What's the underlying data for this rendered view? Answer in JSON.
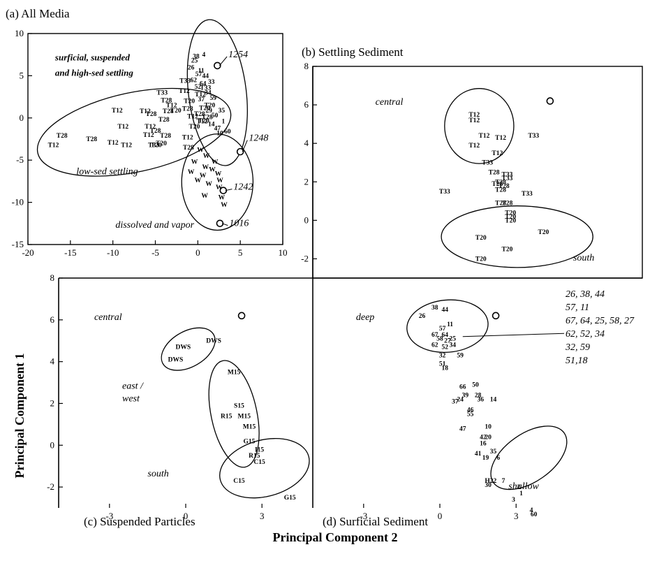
{
  "figure": {
    "xlabel": "Principal Component 2",
    "ylabel": "Principal Component 1"
  },
  "side_list": [
    "26, 38, 44",
    "57, 11",
    "67, 64, 25, 58, 27",
    "62, 52, 34",
    "32, 59",
    "51,18"
  ],
  "chart_data": [
    {
      "id": "a",
      "type": "scatter",
      "title": "(a) All Media",
      "xlim": [
        -20,
        10
      ],
      "ylim": [
        -15,
        10
      ],
      "xticks": [
        -20,
        -15,
        -10,
        -5,
        0,
        5,
        10
      ],
      "yticks": [
        -15,
        -10,
        -5,
        0,
        5,
        10
      ],
      "annotations": [
        {
          "text": "surficial, suspended",
          "x": -16.8,
          "y": 6.8,
          "style": "bold"
        },
        {
          "text": "and high-sed settling",
          "x": -16.8,
          "y": 5.0,
          "style": "bold"
        },
        {
          "text": "low-sed settling",
          "x": -14.3,
          "y": -6.7,
          "style": "italic"
        },
        {
          "text": "dissolved and vapor",
          "x": -9.7,
          "y": -13.0,
          "style": "italic"
        }
      ],
      "callouts": [
        {
          "text": "1254",
          "x": 2.3,
          "y": 6.2,
          "tx": 3.6,
          "ty": 7.6
        },
        {
          "text": "1248",
          "x": 5.0,
          "y": -4.0,
          "tx": 6.0,
          "ty": -2.3
        },
        {
          "text": "1242",
          "x": 3.0,
          "y": -8.6,
          "tx": 4.2,
          "ty": -8.1
        },
        {
          "text": "1016",
          "x": 2.6,
          "y": -12.5,
          "tx": 3.7,
          "ty": -12.4
        }
      ],
      "ellipses": [
        {
          "cx": -7.5,
          "cy": -1.7,
          "rx": 11.6,
          "ry": 4.7,
          "rot": -12
        },
        {
          "cx": 2.3,
          "cy": 3.0,
          "rx": 3.4,
          "ry": 8.7,
          "rot": -7
        },
        {
          "cx": 2.3,
          "cy": -7.6,
          "rx": 4.2,
          "ry": 5.7,
          "rot": 0
        }
      ],
      "points": [
        {
          "l": "T28",
          "x": -16.0,
          "y": -2.1
        },
        {
          "l": "T12",
          "x": -17.0,
          "y": -3.2
        },
        {
          "l": "T28",
          "x": -12.5,
          "y": -2.5
        },
        {
          "l": "T12",
          "x": -10.0,
          "y": -2.9
        },
        {
          "l": "T12",
          "x": -8.8,
          "y": -1.0
        },
        {
          "l": "T12",
          "x": -9.5,
          "y": 0.9
        },
        {
          "l": "T12",
          "x": -8.4,
          "y": -3.2
        },
        {
          "l": "T12",
          "x": -6.2,
          "y": 0.8
        },
        {
          "l": "T28",
          "x": -5.5,
          "y": 0.5
        },
        {
          "l": "T12",
          "x": -5.6,
          "y": -1.0
        },
        {
          "l": "T28",
          "x": -5.0,
          "y": -1.5
        },
        {
          "l": "T20",
          "x": -4.3,
          "y": -3.0
        },
        {
          "l": "T12",
          "x": -5.8,
          "y": -2.0
        },
        {
          "l": "T33",
          "x": -5.2,
          "y": -3.2
        },
        {
          "l": "T20",
          "x": -4.9,
          "y": -3.2
        },
        {
          "l": "T28",
          "x": -3.8,
          "y": -2.1
        },
        {
          "l": "T28",
          "x": -4.0,
          "y": -0.2
        },
        {
          "l": "T28",
          "x": -3.5,
          "y": 0.8
        },
        {
          "l": "T20",
          "x": -2.6,
          "y": 0.9
        },
        {
          "l": "T12",
          "x": -1.2,
          "y": -2.3
        },
        {
          "l": "T28",
          "x": -1.1,
          "y": -3.5
        },
        {
          "l": "T33",
          "x": -4.2,
          "y": 3.0
        },
        {
          "l": "T12",
          "x": -3.1,
          "y": 1.5
        },
        {
          "l": "T28",
          "x": -3.7,
          "y": 2.1
        },
        {
          "l": "T33",
          "x": -1.5,
          "y": 4.4
        },
        {
          "l": "T20",
          "x": -1.0,
          "y": 2.0
        },
        {
          "l": "T12",
          "x": -1.6,
          "y": 3.2
        },
        {
          "l": "T28",
          "x": -1.2,
          "y": 1.1
        },
        {
          "l": "T20",
          "x": 0.8,
          "y": 1.2
        },
        {
          "l": "T12",
          "x": -0.6,
          "y": 0.2
        },
        {
          "l": "T20",
          "x": -0.4,
          "y": -1.0
        },
        {
          "l": "T20",
          "x": 0.7,
          "y": -0.3
        },
        {
          "l": "T12",
          "x": 0.3,
          "y": 2.8
        },
        {
          "l": "T33",
          "x": 0.9,
          "y": 3.6
        },
        {
          "l": "T28",
          "x": 0.2,
          "y": 0.5
        },
        {
          "l": "T20",
          "x": 1.4,
          "y": 1.5
        },
        {
          "l": "T12",
          "x": 0.5,
          "y": -0.4
        },
        {
          "l": "T28",
          "x": 1.1,
          "y": 0.1
        },
        {
          "l": "25",
          "x": -0.4,
          "y": 6.8
        },
        {
          "l": "38",
          "x": -0.2,
          "y": 7.3
        },
        {
          "l": "4",
          "x": 0.7,
          "y": 7.5
        },
        {
          "l": "26",
          "x": -0.8,
          "y": 6.0
        },
        {
          "l": "11",
          "x": 0.4,
          "y": 5.6
        },
        {
          "l": "57",
          "x": 0.1,
          "y": 5.2
        },
        {
          "l": "44",
          "x": 0.9,
          "y": 5.0
        },
        {
          "l": "62",
          "x": -0.5,
          "y": 4.5
        },
        {
          "l": "64",
          "x": 0.6,
          "y": 4.1
        },
        {
          "l": "33",
          "x": 1.6,
          "y": 4.3
        },
        {
          "l": "52",
          "x": 0.0,
          "y": 3.7
        },
        {
          "l": "34",
          "x": 1.2,
          "y": 3.0
        },
        {
          "l": "59",
          "x": 1.8,
          "y": 2.4
        },
        {
          "l": "37",
          "x": 0.4,
          "y": 2.2
        },
        {
          "l": "29",
          "x": 1.3,
          "y": 0.9
        },
        {
          "l": "50",
          "x": 2.0,
          "y": 0.3
        },
        {
          "l": "14",
          "x": 1.6,
          "y": -0.7
        },
        {
          "l": "47",
          "x": 2.3,
          "y": -1.2
        },
        {
          "l": "10",
          "x": 2.6,
          "y": -1.8
        },
        {
          "l": "35",
          "x": 2.8,
          "y": 0.9
        },
        {
          "l": "1",
          "x": 3.0,
          "y": -0.4
        },
        {
          "l": "60",
          "x": 3.5,
          "y": -1.6
        },
        {
          "l": "W",
          "x": 0.3,
          "y": -3.8
        },
        {
          "l": "W",
          "x": 1.0,
          "y": -4.5
        },
        {
          "l": "W",
          "x": -0.4,
          "y": -5.2
        },
        {
          "l": "W",
          "x": 0.9,
          "y": -5.8
        },
        {
          "l": "W",
          "x": 2.0,
          "y": -5.2
        },
        {
          "l": "W",
          "x": -0.8,
          "y": -6.4
        },
        {
          "l": "W",
          "x": 0.6,
          "y": -6.8
        },
        {
          "l": "W",
          "x": 1.7,
          "y": -6.1
        },
        {
          "l": "W",
          "x": 2.4,
          "y": -6.6
        },
        {
          "l": "W",
          "x": 0.0,
          "y": -7.4
        },
        {
          "l": "W",
          "x": 1.3,
          "y": -7.8
        },
        {
          "l": "W",
          "x": 2.6,
          "y": -7.4
        },
        {
          "l": "W",
          "x": 0.8,
          "y": -9.2
        },
        {
          "l": "W",
          "x": 2.8,
          "y": -9.4
        },
        {
          "l": "W",
          "x": 3.1,
          "y": -10.3
        },
        {
          "l": "W",
          "x": 2.5,
          "y": -8.2
        }
      ],
      "markers": [
        {
          "x": 2.3,
          "y": 6.2
        },
        {
          "x": 5.0,
          "y": -4.0
        },
        {
          "x": 2.6,
          "y": -12.5
        },
        {
          "x": 3.0,
          "y": -8.6
        }
      ]
    },
    {
      "id": "b",
      "type": "scatter",
      "title": "(b) Settling Sediment",
      "xlim": [
        -5,
        5
      ],
      "ylim": [
        -3,
        8
      ],
      "yticks": [
        -2,
        0,
        2,
        4,
        6,
        8
      ],
      "annotations": [
        {
          "text": "central",
          "x": -3.1,
          "y": 6.0,
          "style": "italic"
        },
        {
          "text": "south",
          "x": 2.9,
          "y": -2.1,
          "style": "italic"
        }
      ],
      "ellipses": [
        {
          "cx": 0.05,
          "cy": 4.9,
          "rx": 1.05,
          "ry": 1.95,
          "rot": 0
        },
        {
          "cx": 1.2,
          "cy": -0.85,
          "rx": 2.3,
          "ry": 1.6,
          "rot": 0
        }
      ],
      "points": [
        {
          "l": "T12",
          "x": -0.1,
          "y": 5.5
        },
        {
          "l": "T12",
          "x": -0.1,
          "y": 5.2
        },
        {
          "l": "T33",
          "x": 1.7,
          "y": 4.4
        },
        {
          "l": "T12",
          "x": 0.2,
          "y": 4.4
        },
        {
          "l": "T12",
          "x": 0.7,
          "y": 4.3
        },
        {
          "l": "T12",
          "x": -0.1,
          "y": 3.9
        },
        {
          "l": "T12",
          "x": 0.6,
          "y": 3.5
        },
        {
          "l": "T33",
          "x": 0.3,
          "y": 3.0
        },
        {
          "l": "T28",
          "x": 0.5,
          "y": 2.5
        },
        {
          "l": "T33",
          "x": 0.9,
          "y": 2.4
        },
        {
          "l": "T33",
          "x": 0.9,
          "y": 2.2
        },
        {
          "l": "T28",
          "x": 0.7,
          "y": 2.0
        },
        {
          "l": "T28",
          "x": 0.6,
          "y": 1.9
        },
        {
          "l": "T28",
          "x": 0.8,
          "y": 1.8
        },
        {
          "l": "T33",
          "x": -1.0,
          "y": 1.5
        },
        {
          "l": "T28",
          "x": 0.7,
          "y": 1.6
        },
        {
          "l": "T33",
          "x": 1.5,
          "y": 1.4
        },
        {
          "l": "T28",
          "x": 0.7,
          "y": 0.9
        },
        {
          "l": "T28",
          "x": 0.9,
          "y": 0.9
        },
        {
          "l": "T20",
          "x": 1.0,
          "y": 0.4
        },
        {
          "l": "T20",
          "x": 1.0,
          "y": 0.2
        },
        {
          "l": "T20",
          "x": 1.0,
          "y": 0.0
        },
        {
          "l": "T20",
          "x": 2.0,
          "y": -0.6
        },
        {
          "l": "T20",
          "x": 0.1,
          "y": -0.9
        },
        {
          "l": "T20",
          "x": 0.9,
          "y": -1.5
        },
        {
          "l": "T20",
          "x": 0.1,
          "y": -2.0
        }
      ],
      "markers": [
        {
          "x": 2.2,
          "y": 6.2
        }
      ]
    },
    {
      "id": "c",
      "type": "scatter",
      "title": "(c) Suspended Particles",
      "xlim": [
        -5,
        5
      ],
      "ylim": [
        -3,
        8
      ],
      "xticks": [
        -3,
        0,
        3
      ],
      "yticks": [
        -2,
        0,
        2,
        4,
        6,
        8
      ],
      "annotations": [
        {
          "text": "central",
          "x": -3.6,
          "y": 6.0,
          "style": "italic"
        },
        {
          "text": "east /",
          "x": -2.5,
          "y": 2.7,
          "style": "italic"
        },
        {
          "text": "west",
          "x": -2.5,
          "y": 2.1,
          "style": "italic"
        },
        {
          "text": "south",
          "x": -1.5,
          "y": -1.5,
          "style": "italic"
        }
      ],
      "ellipses": [
        {
          "cx": 0.1,
          "cy": 4.6,
          "rx": 1.15,
          "ry": 0.85,
          "rot": -30
        },
        {
          "cx": 1.9,
          "cy": 1.5,
          "rx": 0.9,
          "ry": 2.6,
          "rot": -12
        },
        {
          "cx": 3.1,
          "cy": -1.1,
          "rx": 1.8,
          "ry": 1.35,
          "rot": -15
        }
      ],
      "points": [
        {
          "l": "DWS",
          "x": 1.1,
          "y": 5.0
        },
        {
          "l": "DWS",
          "x": -0.1,
          "y": 4.7
        },
        {
          "l": "DWS",
          "x": -0.4,
          "y": 4.1
        },
        {
          "l": "M15",
          "x": 1.9,
          "y": 3.5
        },
        {
          "l": "S15",
          "x": 2.1,
          "y": 1.9
        },
        {
          "l": "R15",
          "x": 1.6,
          "y": 1.4
        },
        {
          "l": "M15",
          "x": 2.3,
          "y": 1.4
        },
        {
          "l": "M15",
          "x": 2.5,
          "y": 0.9
        },
        {
          "l": "G15",
          "x": 2.5,
          "y": 0.2
        },
        {
          "l": "I15",
          "x": 2.9,
          "y": -0.2
        },
        {
          "l": "R15",
          "x": 2.7,
          "y": -0.5
        },
        {
          "l": "C15",
          "x": 2.9,
          "y": -0.8
        },
        {
          "l": "C15",
          "x": 2.1,
          "y": -1.7
        },
        {
          "l": "G15",
          "x": 4.1,
          "y": -2.5
        }
      ],
      "markers": [
        {
          "x": 2.2,
          "y": 6.2
        }
      ]
    },
    {
      "id": "d",
      "type": "scatter",
      "title": "(d) Surficial Sediment",
      "xlim": [
        -5,
        5
      ],
      "ylim": [
        -3,
        8
      ],
      "xticks": [
        -3,
        0,
        3
      ],
      "annotations": [
        {
          "text": "deep",
          "x": -3.3,
          "y": 6.0,
          "style": "italic"
        },
        {
          "text": "shallow",
          "x": 2.7,
          "y": -2.1,
          "style": "italic"
        }
      ],
      "ellipses": [
        {
          "cx": 0.3,
          "cy": 5.7,
          "rx": 1.6,
          "ry": 1.25,
          "rot": -5
        },
        {
          "cx": 3.5,
          "cy": -0.6,
          "rx": 1.7,
          "ry": 1.15,
          "rot": -35
        }
      ],
      "points": [
        {
          "l": "26",
          "x": -0.7,
          "y": 6.2
        },
        {
          "l": "38",
          "x": -0.2,
          "y": 6.6
        },
        {
          "l": "44",
          "x": 0.2,
          "y": 6.5
        },
        {
          "l": "11",
          "x": 0.4,
          "y": 5.8
        },
        {
          "l": "57",
          "x": 0.1,
          "y": 5.6
        },
        {
          "l": "67",
          "x": -0.2,
          "y": 5.3
        },
        {
          "l": "64",
          "x": 0.2,
          "y": 5.3
        },
        {
          "l": "25",
          "x": 0.5,
          "y": 5.1
        },
        {
          "l": "58",
          "x": 0.0,
          "y": 5.1
        },
        {
          "l": "27",
          "x": 0.3,
          "y": 5.0
        },
        {
          "l": "62",
          "x": -0.2,
          "y": 4.8
        },
        {
          "l": "52",
          "x": 0.2,
          "y": 4.7
        },
        {
          "l": "34",
          "x": 0.5,
          "y": 4.8
        },
        {
          "l": "32",
          "x": 0.1,
          "y": 4.3
        },
        {
          "l": "59",
          "x": 0.8,
          "y": 4.3
        },
        {
          "l": "51",
          "x": 0.1,
          "y": 3.9
        },
        {
          "l": "18",
          "x": 0.2,
          "y": 3.7
        },
        {
          "l": "66",
          "x": 0.9,
          "y": 2.8
        },
        {
          "l": "50",
          "x": 1.4,
          "y": 2.9
        },
        {
          "l": "39",
          "x": 1.0,
          "y": 2.4
        },
        {
          "l": "28",
          "x": 1.5,
          "y": 2.4
        },
        {
          "l": "36",
          "x": 1.6,
          "y": 2.2
        },
        {
          "l": "37",
          "x": 0.6,
          "y": 2.1
        },
        {
          "l": "24",
          "x": 0.8,
          "y": 2.2
        },
        {
          "l": "14",
          "x": 2.1,
          "y": 2.2
        },
        {
          "l": "46",
          "x": 1.2,
          "y": 1.7
        },
        {
          "l": "55",
          "x": 1.2,
          "y": 1.5
        },
        {
          "l": "47",
          "x": 0.9,
          "y": 0.8
        },
        {
          "l": "10",
          "x": 1.9,
          "y": 0.9
        },
        {
          "l": "42",
          "x": 1.7,
          "y": 0.4
        },
        {
          "l": "20",
          "x": 1.9,
          "y": 0.4
        },
        {
          "l": "16",
          "x": 1.7,
          "y": 0.1
        },
        {
          "l": "41",
          "x": 1.5,
          "y": -0.4
        },
        {
          "l": "35",
          "x": 2.1,
          "y": -0.3
        },
        {
          "l": "19",
          "x": 1.8,
          "y": -0.6
        },
        {
          "l": "6",
          "x": 2.3,
          "y": -0.6
        },
        {
          "l": "H22",
          "x": 2.0,
          "y": -1.7
        },
        {
          "l": "7",
          "x": 2.5,
          "y": -1.7
        },
        {
          "l": "30",
          "x": 1.9,
          "y": -1.9
        },
        {
          "l": "2",
          "x": 3.1,
          "y": -2.0
        },
        {
          "l": "1",
          "x": 3.2,
          "y": -2.3
        },
        {
          "l": "3",
          "x": 2.9,
          "y": -2.6
        },
        {
          "l": "4",
          "x": 3.6,
          "y": -3.1
        },
        {
          "l": "60",
          "x": 3.7,
          "y": -3.3
        }
      ],
      "markers": [
        {
          "x": 2.2,
          "y": 6.2
        }
      ]
    }
  ]
}
